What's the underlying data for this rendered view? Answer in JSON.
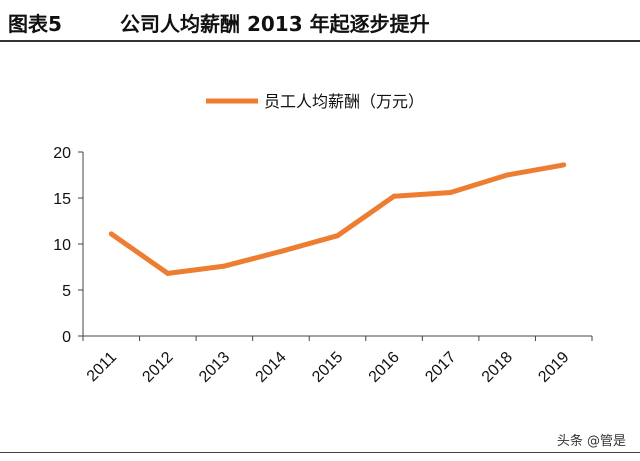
{
  "header": {
    "figure_label": "图表5",
    "title": "公司人均薪酬 2013 年起逐步提升"
  },
  "watermark": "头条 @管是",
  "colors": {
    "series": "#ED7D31",
    "axis": "#444444"
  },
  "chart_data": {
    "type": "line",
    "title": "公司人均薪酬 2013 年起逐步提升",
    "xlabel": "",
    "ylabel": "",
    "categories": [
      "2011",
      "2012",
      "2013",
      "2014",
      "2015",
      "2016",
      "2017",
      "2018",
      "2019"
    ],
    "series": [
      {
        "name": "员工人均薪酬（万元）",
        "values": [
          11.1,
          6.8,
          7.6,
          9.2,
          10.9,
          15.2,
          15.6,
          17.5,
          18.6
        ]
      }
    ],
    "ylim": [
      0,
      20
    ],
    "yticks": [
      0,
      5,
      10,
      15,
      20
    ],
    "grid": false,
    "legend": "top-center"
  }
}
